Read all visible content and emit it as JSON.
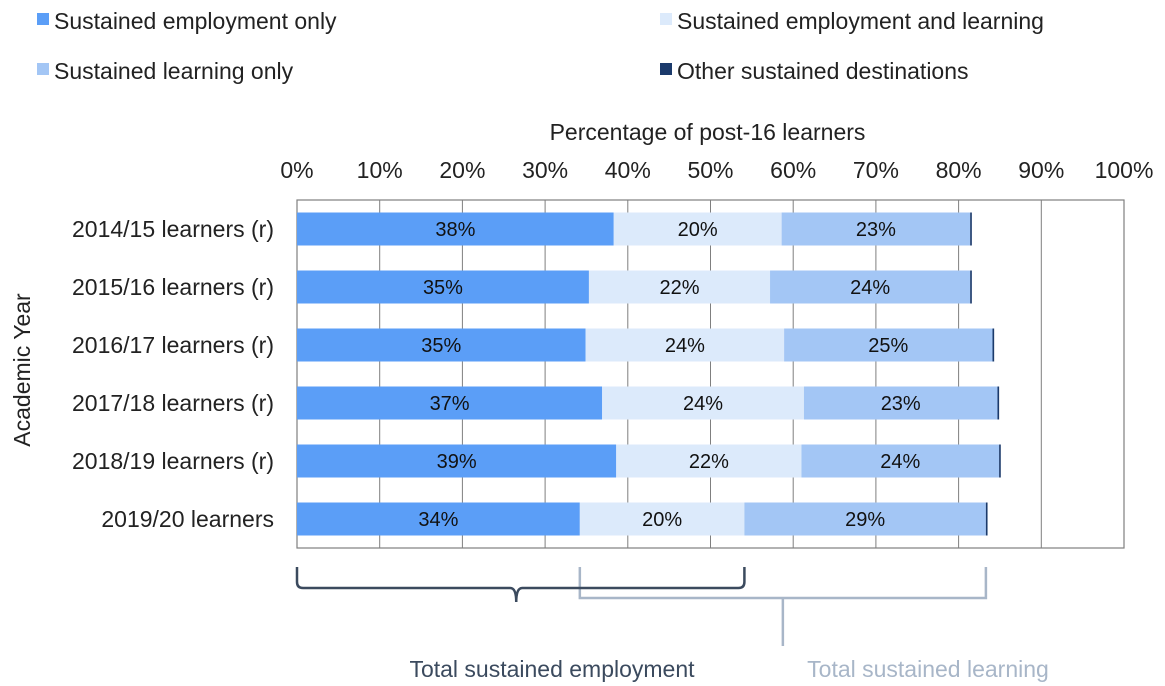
{
  "chart_data": {
    "type": "bar",
    "orientation": "horizontal",
    "stacked": true,
    "title": "",
    "xlabel": "Percentage of post-16 learners",
    "ylabel": "Academic Year",
    "xlim": [
      0,
      100
    ],
    "x_ticks": [
      "0%",
      "10%",
      "20%",
      "30%",
      "40%",
      "50%",
      "60%",
      "70%",
      "80%",
      "90%",
      "100%"
    ],
    "categories": [
      "2014/15 learners (r)",
      "2015/16 learners (r)",
      "2016/17 learners (r)",
      "2017/18 learners (r)",
      "2018/19 learners (r)",
      "2019/20 learners"
    ],
    "series": [
      {
        "name": "Sustained employment only",
        "color": "#5b9ef7",
        "values": [
          38.3,
          35.3,
          34.9,
          36.9,
          38.6,
          34.2
        ],
        "labels": [
          "38%",
          "35%",
          "35%",
          "37%",
          "39%",
          "34%"
        ]
      },
      {
        "name": "Sustained employment and learning",
        "color": "#dceafb",
        "values": [
          20.3,
          21.9,
          24.0,
          24.4,
          22.4,
          19.9
        ],
        "labels": [
          "20%",
          "22%",
          "24%",
          "24%",
          "22%",
          "20%"
        ]
      },
      {
        "name": "Sustained learning only",
        "color": "#a3c6f5",
        "values": [
          22.8,
          24.2,
          25.2,
          23.4,
          23.9,
          29.2
        ],
        "labels": [
          "23%",
          "24%",
          "25%",
          "23%",
          "24%",
          "29%"
        ]
      },
      {
        "name": "Other sustained destinations",
        "color": "#1b3a6b",
        "values": [
          0.2,
          0.2,
          0.2,
          0.2,
          0.2,
          0.2
        ],
        "labels": [
          "",
          "",
          "",
          "",
          "",
          ""
        ]
      }
    ],
    "legend_position": "top",
    "grid": true,
    "annotations": {
      "total_employment": {
        "label": "Total sustained employment",
        "color": "#3b4a5e"
      },
      "total_learning": {
        "label": "Total sustained learning",
        "color": "#a8b6c8"
      }
    }
  }
}
